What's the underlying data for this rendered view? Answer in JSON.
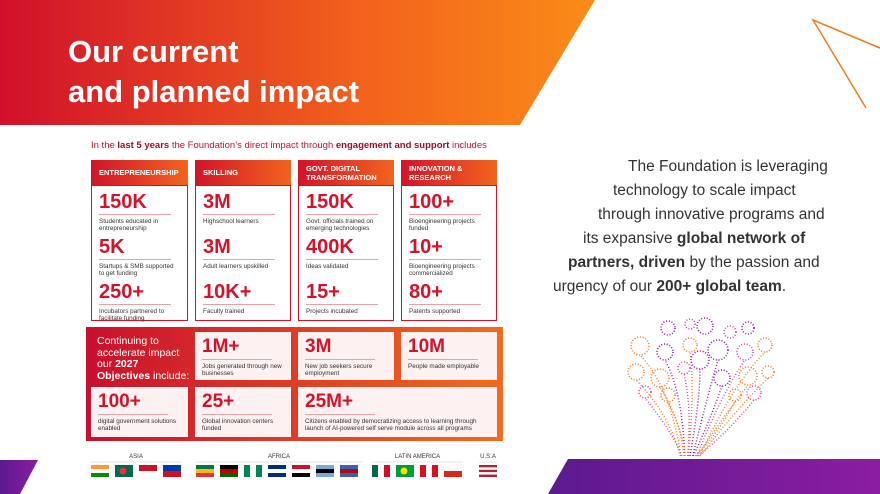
{
  "header": {
    "title_lines": [
      "Our current",
      "and planned impact"
    ]
  },
  "intro": [
    {
      "text": "In the ",
      "bold": false
    },
    {
      "text": "last 5 years",
      "bold": true
    },
    {
      "text": " the Foundation’s direct impact through ",
      "bold": false
    },
    {
      "text": "engagement and support",
      "bold": true
    },
    {
      "text": " includes",
      "bold": false
    }
  ],
  "columns": [
    {
      "heading": "ENTREPRENEURSHIP",
      "stats": [
        {
          "value": "150K",
          "label": "Students educated in entrepreneurship"
        },
        {
          "value": "5K",
          "label": "Startups & SMB supported to get funding"
        },
        {
          "value": "250+",
          "label": "Incubators partnered to facilitate funding"
        }
      ]
    },
    {
      "heading": "SKILLING",
      "stats": [
        {
          "value": "3M",
          "label": "Highschool learners"
        },
        {
          "value": "3M",
          "label": "Adult learners upskilled"
        },
        {
          "value": "10K+",
          "label": "Faculty trained"
        }
      ]
    },
    {
      "heading": "GOVT. DIGITAL TRANSFORMATION",
      "stats": [
        {
          "value": "150K",
          "label": "Govt. officials trained on emerging technologies"
        },
        {
          "value": "400K",
          "label": "Ideas validated"
        },
        {
          "value": "15+",
          "label": "Projects incubated"
        }
      ]
    },
    {
      "heading": "INNOVATION & RESEARCH",
      "stats": [
        {
          "value": "100+",
          "label": "Bioengineering projects funded"
        },
        {
          "value": "10+",
          "label": "Bioengineering projects commercialized"
        },
        {
          "value": "80+",
          "label": "Patents supported"
        }
      ]
    }
  ],
  "objectives": {
    "intro": [
      {
        "text": "Continuing to accelerate impact our ",
        "bold": false
      },
      {
        "text": "2027 Objectives",
        "bold": true
      },
      {
        "text": " include:",
        "bold": false
      }
    ],
    "cards": [
      {
        "value": "1M+",
        "label": "Jobs generated through new businesses"
      },
      {
        "value": "3M",
        "label": "New job seekers secure employment"
      },
      {
        "value": "10M",
        "label": "People made employable"
      },
      {
        "value": "100+",
        "label": "digital government solutions enabled"
      },
      {
        "value": "25+",
        "label": "Global innovation centers funded"
      },
      {
        "value": "25M+",
        "label": "Citizens enabled by democratizing access to learning through launch of AI-powered self serve module across all programs"
      }
    ]
  },
  "regions": [
    {
      "name": "ASIA"
    },
    {
      "name": "AFRICA"
    },
    {
      "name": "LATIN AMERICA"
    },
    {
      "name": "U.S.A"
    }
  ],
  "statement": {
    "lines": [
      [
        {
          "text": "The Foundation is leveraging",
          "bold": false
        }
      ],
      [
        {
          "text": "technology to scale impact",
          "bold": false
        }
      ],
      [
        {
          "text": "through innovative programs and",
          "bold": false
        }
      ],
      [
        {
          "text": "its expansive ",
          "bold": false
        },
        {
          "text": "global network of",
          "bold": true
        }
      ],
      [
        {
          "text": "partners, driven",
          "bold": true
        },
        {
          "text": " by the passion and",
          "bold": false
        }
      ],
      [
        {
          "text": "urgency of our ",
          "bold": false
        },
        {
          "text": "200+ global team",
          "bold": true
        },
        {
          "text": ".",
          "bold": false
        }
      ]
    ]
  }
}
